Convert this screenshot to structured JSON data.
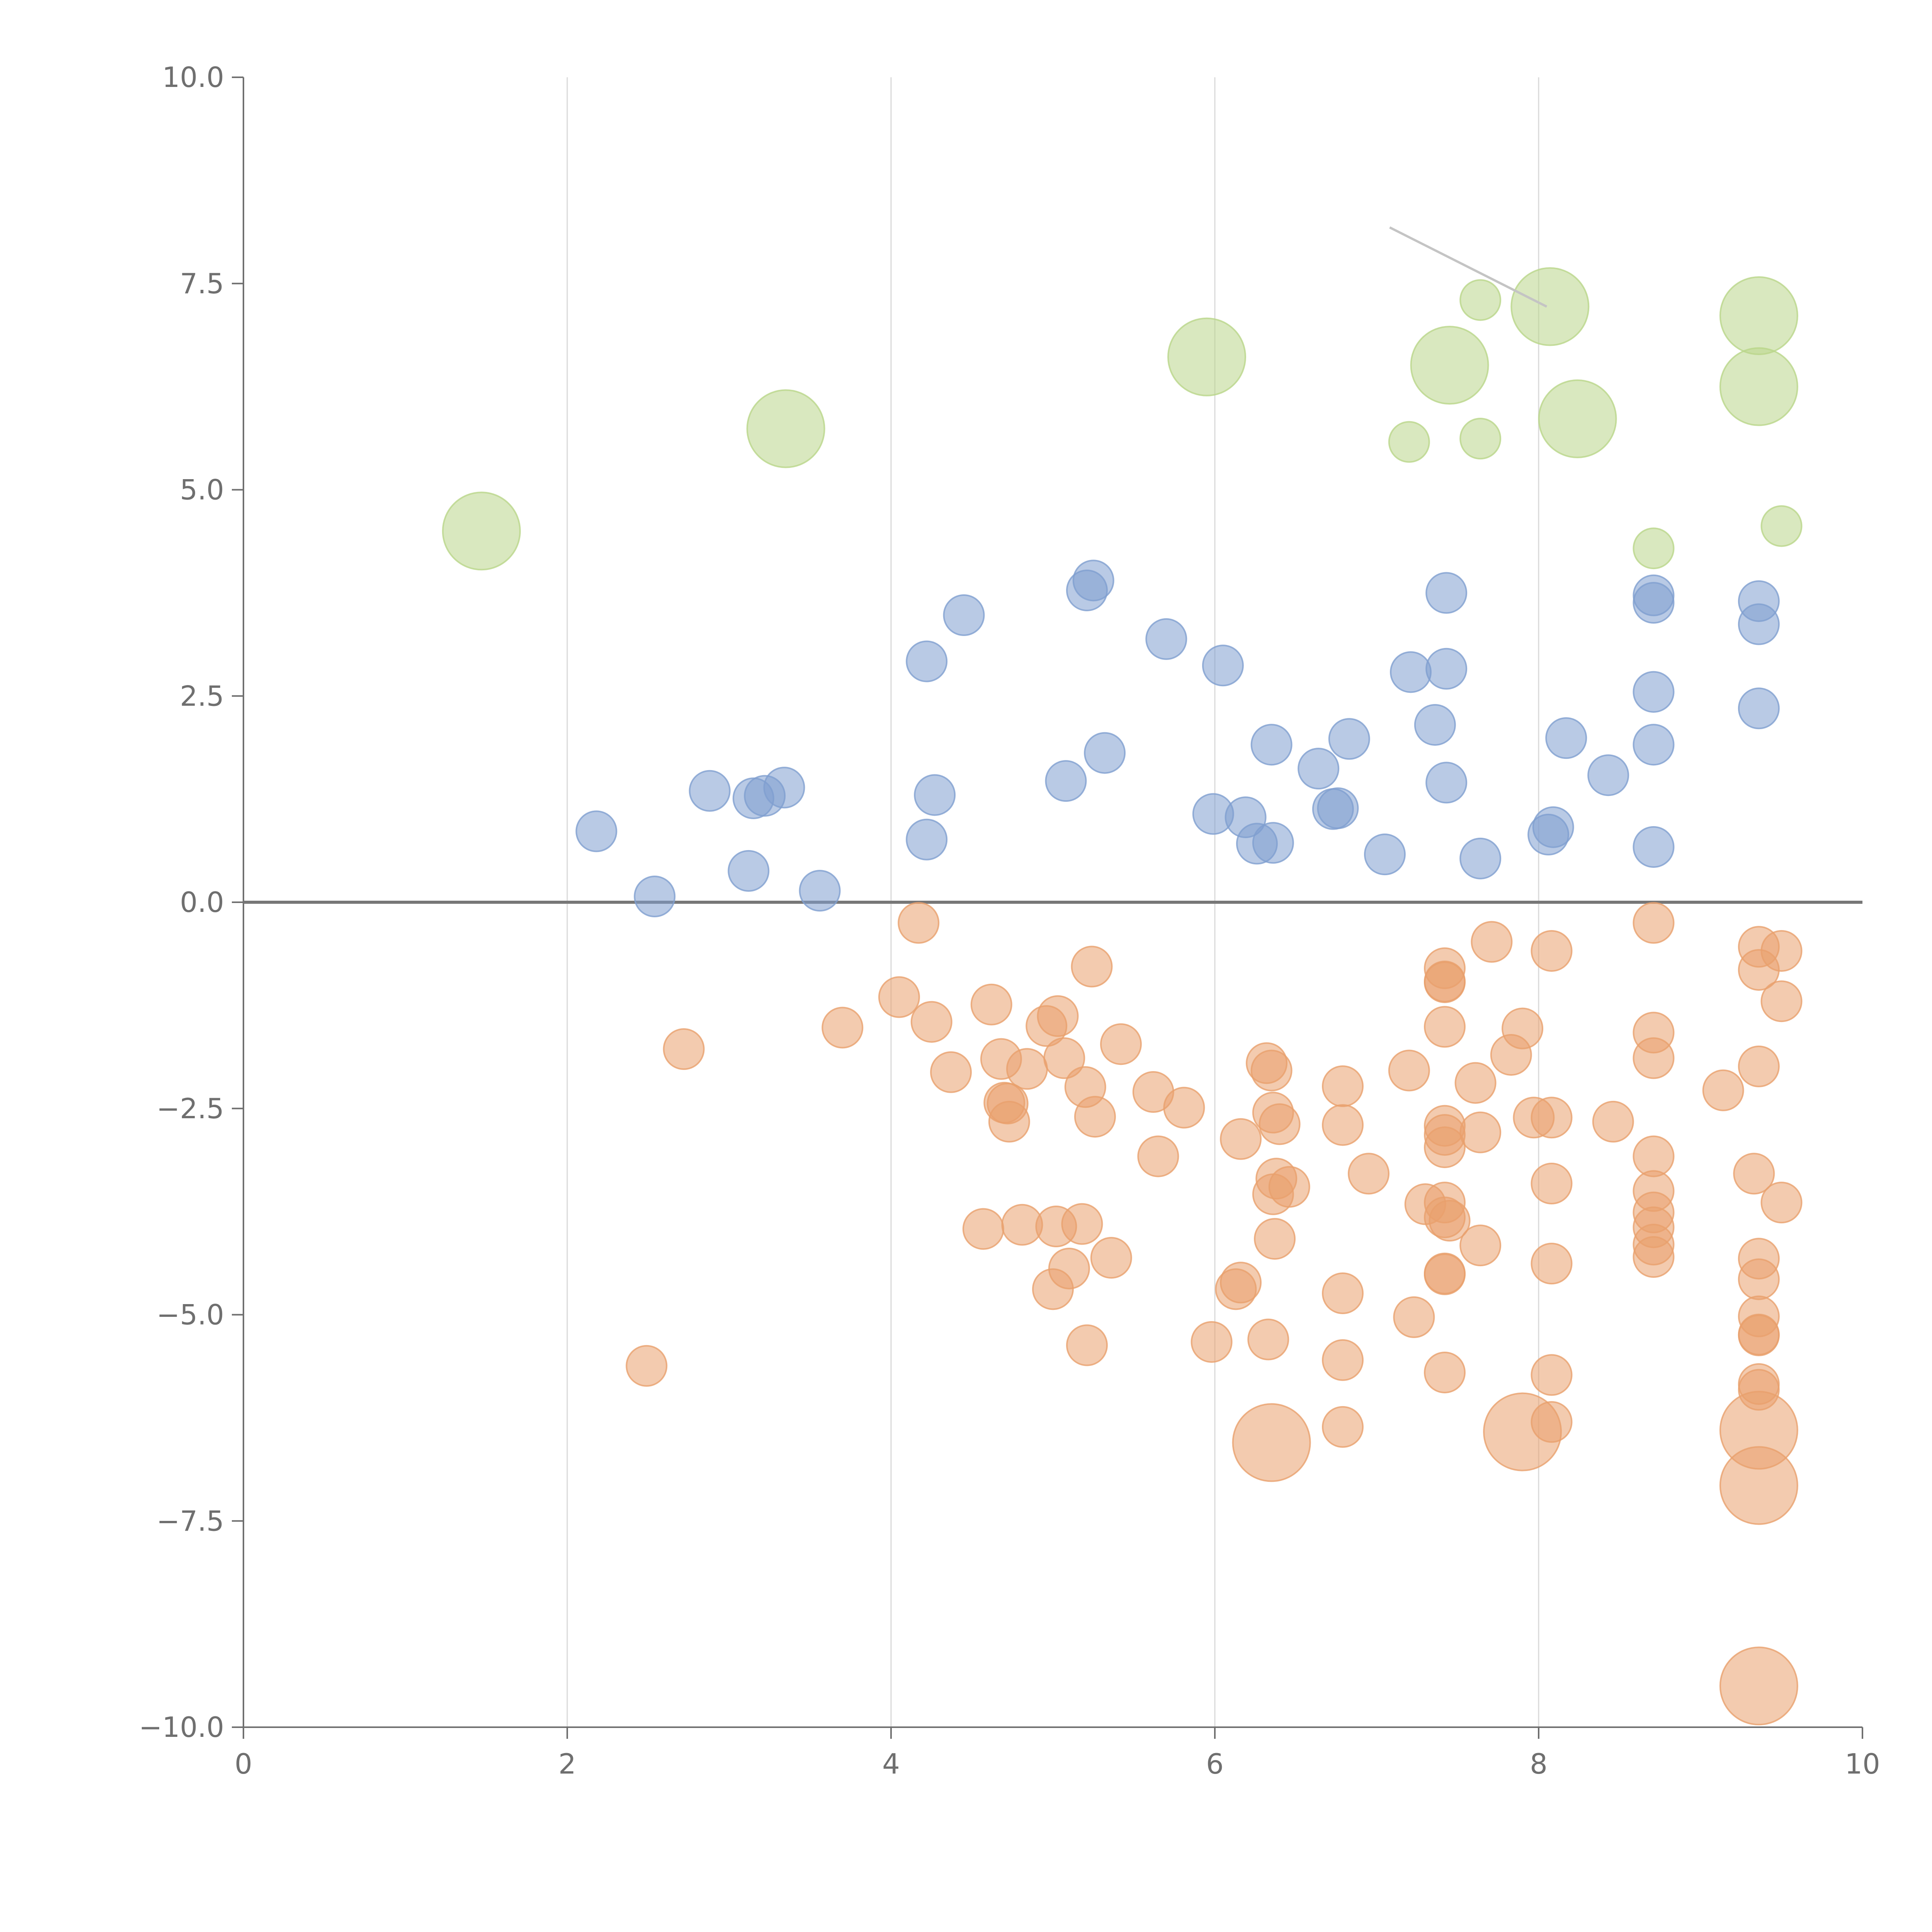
{
  "chart_data": {
    "type": "scatter",
    "title": "",
    "xlabel": "",
    "ylabel": "",
    "xlim": [
      0,
      10
    ],
    "ylim": [
      -10,
      10
    ],
    "x_ticks": [
      0,
      2,
      4,
      6,
      8,
      10
    ],
    "y_ticks": [
      -10.0,
      -7.5,
      -5.0,
      -2.5,
      0.0,
      2.5,
      5.0,
      7.5,
      10.0
    ],
    "x_tick_labels": [
      "0",
      "2",
      "4",
      "6",
      "8",
      "10"
    ],
    "y_tick_labels": [
      "−10.0",
      "−7.5",
      "−5.0",
      "−2.5",
      "0.0",
      "2.5",
      "5.0",
      "7.5",
      "10.0"
    ],
    "grid": {
      "vertical": true,
      "horizontal": false
    },
    "reference_line_y": 0,
    "leader_line": {
      "from": [
        7.08,
        8.18
      ],
      "to": [
        8.05,
        7.22
      ]
    },
    "series": [
      {
        "color": "#7f9fd0",
        "points": [
          [
            2.18,
            0.86,
            1
          ],
          [
            2.54,
            0.07,
            1
          ],
          [
            2.88,
            1.35,
            1
          ],
          [
            3.12,
            0.38,
            1
          ],
          [
            3.15,
            1.26,
            1
          ],
          [
            3.22,
            1.29,
            1
          ],
          [
            3.34,
            1.39,
            1
          ],
          [
            3.56,
            0.14,
            1
          ],
          [
            4.22,
            2.92,
            1
          ],
          [
            4.22,
            0.76,
            1
          ],
          [
            4.27,
            1.3,
            1
          ],
          [
            4.45,
            3.48,
            1
          ],
          [
            5.08,
            1.47,
            1
          ],
          [
            5.21,
            3.78,
            1
          ],
          [
            5.25,
            3.9,
            1
          ],
          [
            5.32,
            1.81,
            1
          ],
          [
            5.7,
            3.19,
            1
          ],
          [
            5.99,
            1.07,
            1
          ],
          [
            6.05,
            2.87,
            1
          ],
          [
            6.19,
            1.03,
            1
          ],
          [
            6.26,
            0.71,
            1
          ],
          [
            6.35,
            1.91,
            1
          ],
          [
            6.36,
            0.72,
            1
          ],
          [
            6.64,
            1.62,
            1
          ],
          [
            6.73,
            1.13,
            1
          ],
          [
            6.76,
            1.14,
            1
          ],
          [
            6.83,
            1.98,
            1
          ],
          [
            7.05,
            0.58,
            1
          ],
          [
            7.21,
            2.79,
            1
          ],
          [
            7.36,
            2.15,
            1
          ],
          [
            7.43,
            2.83,
            1
          ],
          [
            7.43,
            1.45,
            1
          ],
          [
            7.43,
            3.75,
            1
          ],
          [
            7.64,
            0.53,
            1
          ],
          [
            8.06,
            0.82,
            1
          ],
          [
            8.09,
            0.91,
            1
          ],
          [
            8.17,
            1.99,
            1
          ],
          [
            8.43,
            1.54,
            1
          ],
          [
            8.71,
            3.72,
            1
          ],
          [
            8.71,
            3.63,
            1
          ],
          [
            8.71,
            2.55,
            1
          ],
          [
            8.71,
            1.91,
            1
          ],
          [
            8.71,
            0.67,
            1
          ],
          [
            9.36,
            3.65,
            1
          ],
          [
            9.36,
            3.37,
            1
          ],
          [
            9.36,
            2.35,
            1
          ]
        ]
      },
      {
        "color": "#e9a06d",
        "points": [
          [
            2.49,
            -5.62,
            1
          ],
          [
            2.72,
            -1.78,
            1
          ],
          [
            3.7,
            -1.52,
            1
          ],
          [
            4.05,
            -1.15,
            1
          ],
          [
            4.17,
            -0.25,
            1
          ],
          [
            4.25,
            -1.45,
            1
          ],
          [
            4.37,
            -2.06,
            1
          ],
          [
            4.57,
            -3.96,
            1
          ],
          [
            4.62,
            -1.24,
            1
          ],
          [
            4.68,
            -1.9,
            1
          ],
          [
            4.7,
            -2.43,
            1
          ],
          [
            4.72,
            -2.44,
            1
          ],
          [
            4.73,
            -2.66,
            1
          ],
          [
            4.81,
            -3.91,
            1
          ],
          [
            4.84,
            -2.02,
            1
          ],
          [
            4.96,
            -1.5,
            1
          ],
          [
            5.0,
            -4.69,
            1
          ],
          [
            5.02,
            -3.93,
            1
          ],
          [
            5.03,
            -1.38,
            1
          ],
          [
            5.07,
            -1.89,
            1
          ],
          [
            5.1,
            -4.44,
            1
          ],
          [
            5.18,
            -3.9,
            1
          ],
          [
            5.2,
            -2.24,
            1
          ],
          [
            5.21,
            -5.37,
            1
          ],
          [
            5.24,
            -0.78,
            1
          ],
          [
            5.26,
            -2.6,
            1
          ],
          [
            5.36,
            -4.31,
            1
          ],
          [
            5.42,
            -1.72,
            1
          ],
          [
            5.62,
            -2.3,
            1
          ],
          [
            5.65,
            -3.08,
            1
          ],
          [
            5.81,
            -2.49,
            1
          ],
          [
            5.98,
            -5.33,
            1
          ],
          [
            6.13,
            -4.69,
            1
          ],
          [
            6.16,
            -4.61,
            1
          ],
          [
            6.16,
            -2.87,
            1
          ],
          [
            6.32,
            -1.95,
            1
          ],
          [
            6.33,
            -5.3,
            1
          ],
          [
            6.35,
            -2.04,
            1
          ],
          [
            6.36,
            -2.55,
            1
          ],
          [
            6.36,
            -3.54,
            1
          ],
          [
            6.37,
            -4.08,
            1
          ],
          [
            6.38,
            -3.35,
            1
          ],
          [
            6.4,
            -2.69,
            1
          ],
          [
            6.46,
            -3.45,
            1
          ],
          [
            6.35,
            -6.55,
            3
          ],
          [
            6.79,
            -2.23,
            1
          ],
          [
            6.79,
            -2.7,
            1
          ],
          [
            6.79,
            -4.74,
            1
          ],
          [
            6.79,
            -5.55,
            1
          ],
          [
            6.79,
            -6.36,
            1
          ],
          [
            6.95,
            -3.29,
            1
          ],
          [
            7.2,
            -2.04,
            1
          ],
          [
            7.23,
            -5.03,
            1
          ],
          [
            7.3,
            -3.66,
            1
          ],
          [
            7.42,
            -2.71,
            1
          ],
          [
            7.42,
            -2.97,
            1
          ],
          [
            7.42,
            -2.82,
            1
          ],
          [
            7.42,
            -3.64,
            1
          ],
          [
            7.42,
            -3.82,
            1
          ],
          [
            7.42,
            -4.5,
            1
          ],
          [
            7.42,
            -4.51,
            1
          ],
          [
            7.42,
            -1.51,
            1
          ],
          [
            7.42,
            -0.8,
            1
          ],
          [
            7.42,
            -0.96,
            1
          ],
          [
            7.42,
            -0.97,
            1
          ],
          [
            7.42,
            -5.7,
            1
          ],
          [
            7.45,
            -3.86,
            1
          ],
          [
            7.61,
            -2.19,
            1
          ],
          [
            7.64,
            -2.79,
            1
          ],
          [
            7.64,
            -4.16,
            1
          ],
          [
            7.71,
            -0.48,
            1
          ],
          [
            7.83,
            -1.85,
            1
          ],
          [
            7.9,
            -1.53,
            1
          ],
          [
            7.9,
            -6.42,
            3
          ],
          [
            7.97,
            -2.61,
            1
          ],
          [
            8.08,
            -0.59,
            1
          ],
          [
            8.08,
            -2.61,
            1
          ],
          [
            8.08,
            -3.41,
            1
          ],
          [
            8.08,
            -4.38,
            1
          ],
          [
            8.08,
            -5.73,
            1
          ],
          [
            8.08,
            -6.3,
            1
          ],
          [
            8.46,
            -2.66,
            1
          ],
          [
            8.71,
            -0.25,
            1
          ],
          [
            8.71,
            -1.58,
            1
          ],
          [
            8.71,
            -1.89,
            1
          ],
          [
            8.71,
            -3.08,
            1
          ],
          [
            8.71,
            -3.5,
            1
          ],
          [
            8.71,
            -3.76,
            1
          ],
          [
            8.71,
            -3.94,
            1
          ],
          [
            8.71,
            -4.15,
            1
          ],
          [
            8.71,
            -4.3,
            1
          ],
          [
            9.14,
            -2.28,
            1
          ],
          [
            9.36,
            -0.54,
            1
          ],
          [
            9.36,
            -0.82,
            1
          ],
          [
            9.36,
            -1.99,
            1
          ],
          [
            9.33,
            -3.29,
            1
          ],
          [
            9.36,
            -4.32,
            1
          ],
          [
            9.36,
            -4.57,
            1
          ],
          [
            9.36,
            -5.02,
            1
          ],
          [
            9.36,
            -5.24,
            1
          ],
          [
            9.36,
            -5.25,
            1
          ],
          [
            9.36,
            -5.84,
            1
          ],
          [
            9.36,
            -5.91,
            1
          ],
          [
            9.36,
            -6.4,
            3
          ],
          [
            9.36,
            -7.07,
            3
          ],
          [
            9.36,
            -9.5,
            3
          ],
          [
            9.5,
            -0.59,
            1
          ],
          [
            9.5,
            -1.2,
            1
          ],
          [
            9.5,
            -3.64,
            1
          ]
        ]
      },
      {
        "color": "#b9d68a",
        "points": [
          [
            1.47,
            4.5,
            3
          ],
          [
            3.35,
            5.74,
            3
          ],
          [
            5.95,
            6.61,
            3
          ],
          [
            7.2,
            5.58,
            1
          ],
          [
            7.45,
            6.51,
            3
          ],
          [
            7.64,
            7.3,
            1
          ],
          [
            7.64,
            5.62,
            1
          ],
          [
            8.07,
            7.22,
            3
          ],
          [
            8.24,
            5.86,
            3
          ],
          [
            8.71,
            4.29,
            1
          ],
          [
            9.36,
            7.11,
            3
          ],
          [
            9.36,
            6.25,
            3
          ],
          [
            9.5,
            4.56,
            1
          ]
        ]
      }
    ]
  }
}
